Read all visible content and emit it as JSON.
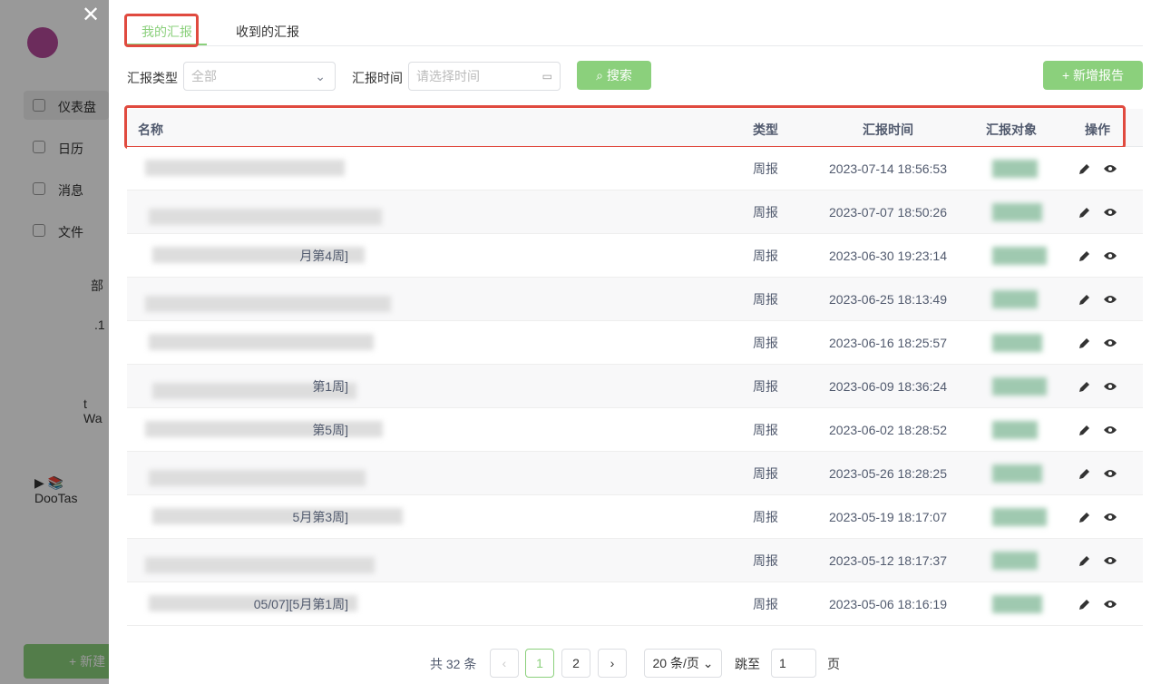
{
  "sidebar": {
    "items": [
      "仪表盘",
      "日历",
      "消息",
      "文件"
    ],
    "fragments": [
      "部",
      ".1",
      "t Wa"
    ],
    "project": "DooTas",
    "button": "新建"
  },
  "tabs": [
    "我的汇报",
    "收到的汇报"
  ],
  "filters": {
    "type_label": "汇报类型",
    "type_placeholder": "全部",
    "time_label": "汇报时间",
    "time_placeholder": "请选择时间",
    "search": "搜索",
    "add": "新增报告"
  },
  "table": {
    "columns": [
      "名称",
      "类型",
      "汇报时间",
      "汇报对象",
      "操作"
    ],
    "rows": [
      {
        "type": "周报",
        "time": "2023-07-14 18:56:53"
      },
      {
        "type": "周报",
        "time": "2023-07-07 18:50:26"
      },
      {
        "name": "月第4周]",
        "type": "周报",
        "time": "2023-06-30 19:23:14"
      },
      {
        "type": "周报",
        "time": "2023-06-25 18:13:49"
      },
      {
        "type": "周报",
        "time": "2023-06-16 18:25:57"
      },
      {
        "name": "第1周]",
        "type": "周报",
        "time": "2023-06-09 18:36:24"
      },
      {
        "name": "第5周]",
        "type": "周报",
        "time": "2023-06-02 18:28:52"
      },
      {
        "type": "周报",
        "time": "2023-05-26 18:28:25"
      },
      {
        "name": "5月第3周]",
        "type": "周报",
        "time": "2023-05-19 18:17:07"
      },
      {
        "type": "周报",
        "time": "2023-05-12 18:17:37"
      },
      {
        "name": "05/07][5月第1周]",
        "type": "周报",
        "time": "2023-05-06 18:16:19"
      }
    ]
  },
  "pagination": {
    "total": "共 32 条",
    "pages": [
      "1",
      "2"
    ],
    "size": "20 条/页",
    "goto": "跳至",
    "input": "1",
    "unit": "页"
  }
}
